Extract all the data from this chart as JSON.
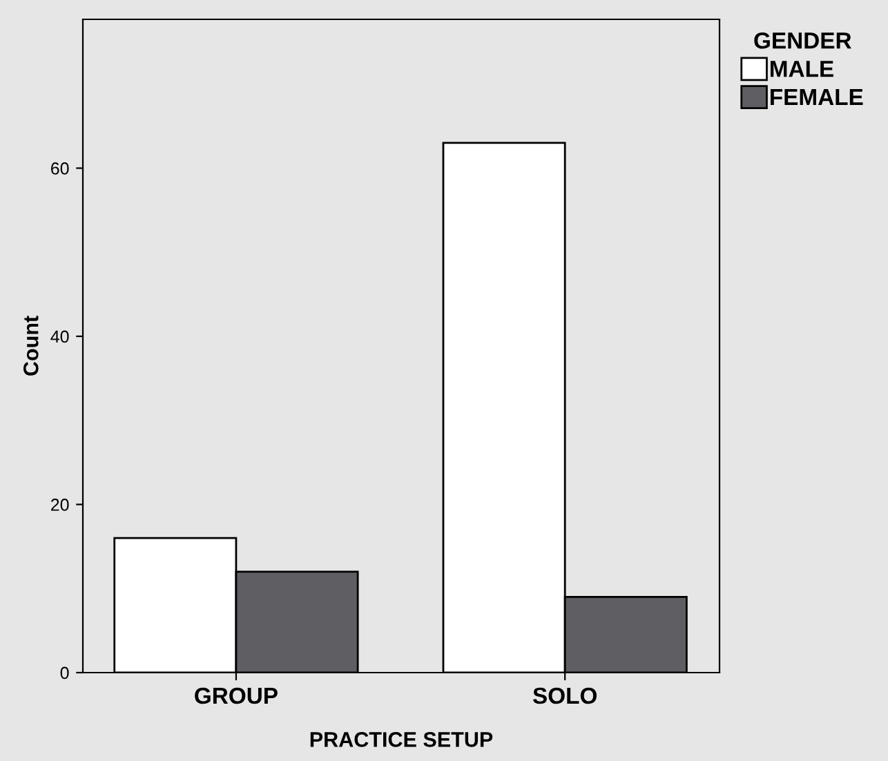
{
  "chart_data": {
    "type": "bar",
    "xlabel": "PRACTICE SETUP",
    "ylabel": "Count",
    "legend_title": "GENDER",
    "categories": [
      "GROUP",
      "SOLO"
    ],
    "series": [
      {
        "name": "MALE",
        "color": "#ffffff",
        "values": [
          16,
          63
        ]
      },
      {
        "name": "FEMALE",
        "color": "#5f5f63",
        "values": [
          12,
          9
        ]
      }
    ],
    "ylim": [
      0,
      77.7
    ],
    "yticks": [
      0,
      20,
      40,
      60
    ],
    "grid": false,
    "legend": "top right"
  }
}
